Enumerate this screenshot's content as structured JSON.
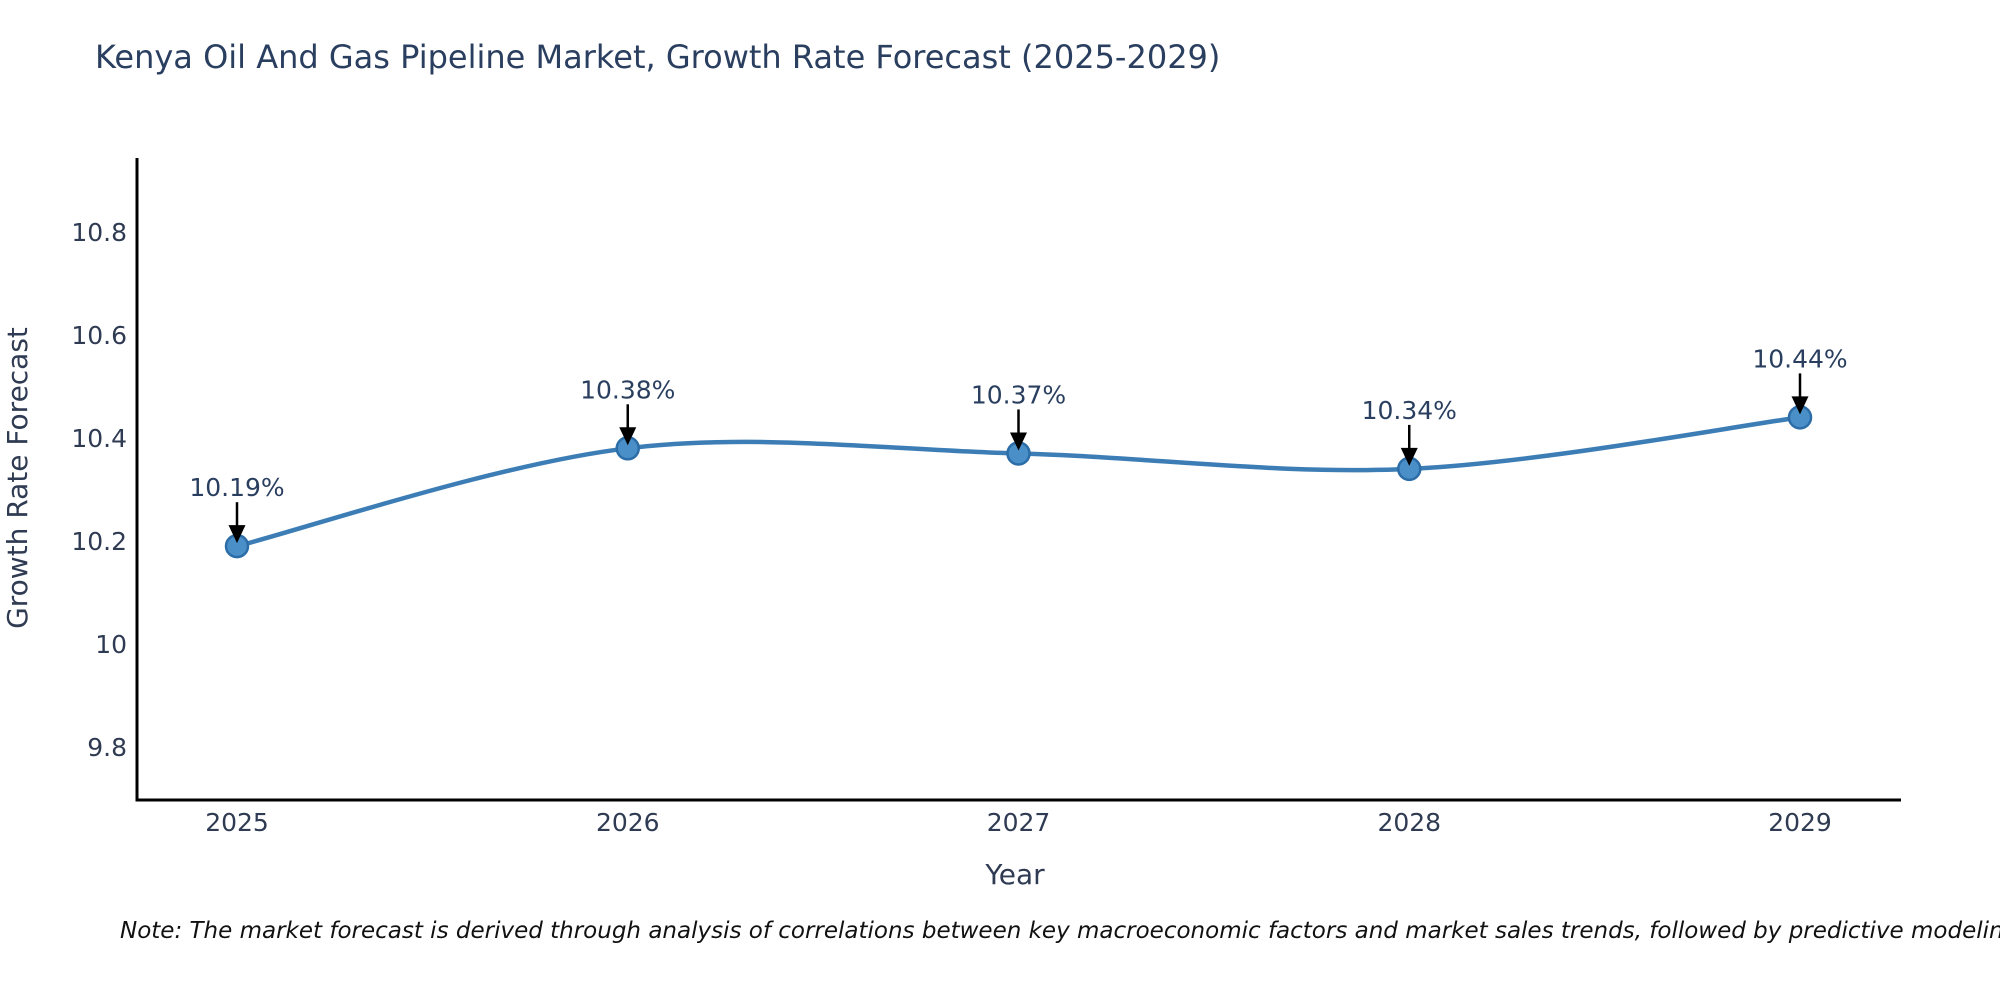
{
  "chart": {
    "title": "Kenya Oil And Gas Pipeline Market, Growth Rate Forecast (2025-2029)",
    "xlabel": "Year",
    "ylabel": "Growth Rate Forecast",
    "note": "Note: The market forecast is derived through analysis of correlations between key macroeconomic factors and market sales trends, followed by predictive modeling to project future sales performance."
  },
  "chart_data": {
    "type": "line",
    "title": "Kenya Oil And Gas Pipeline Market, Growth Rate Forecast (2025-2029)",
    "xlabel": "Year",
    "ylabel": "Growth Rate Forecast",
    "categories": [
      "2025",
      "2026",
      "2027",
      "2028",
      "2029"
    ],
    "series": [
      {
        "name": "Growth Rate Forecast",
        "values": [
          10.19,
          10.38,
          10.37,
          10.34,
          10.44
        ]
      }
    ],
    "point_labels": [
      "10.19%",
      "10.38%",
      "10.37%",
      "10.34%",
      "10.44%"
    ],
    "yticks": [
      10.8,
      10.6,
      10.4,
      10.2,
      10,
      9.8
    ],
    "ylim": [
      9.7,
      10.94
    ],
    "grid": false,
    "legend_position": "none",
    "line_shape": "spline",
    "colors": {
      "line": "#3d7db6",
      "marker_fill": "#4a8fc7",
      "marker_edge": "#2c6da8",
      "axis_line": "#000000",
      "tick_text": "#2f3b52",
      "label_text": "#2a3f5f",
      "annotation_arrow": "#000000"
    }
  }
}
